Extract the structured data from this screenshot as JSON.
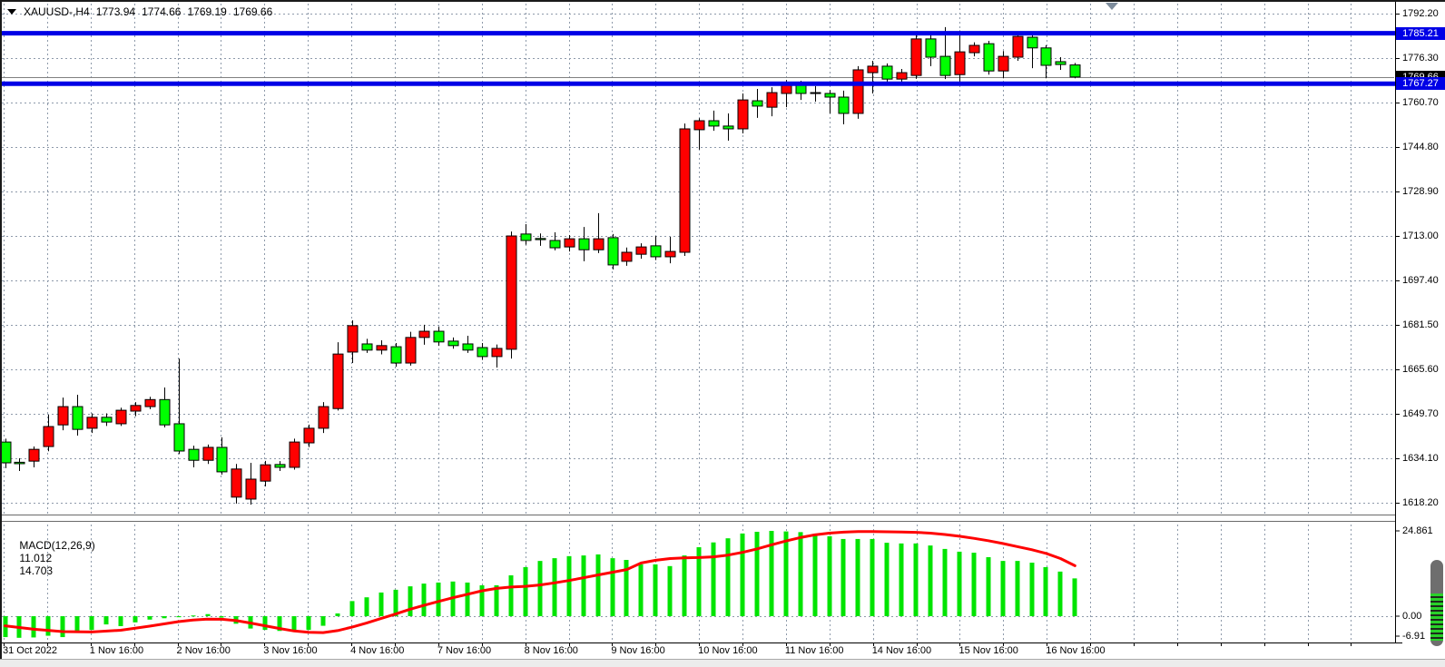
{
  "window": {
    "symbol_period": "XAUUSD-,H4",
    "ohlc": {
      "open": "1773.94",
      "high": "1774.66",
      "low": "1769.19",
      "close": "1769.66"
    }
  },
  "indicator_panel": {
    "label": "MACD(12,26,9)",
    "main_value": "11.012",
    "signal_value": "14.703",
    "axis": [
      "24.861",
      "0.00",
      "-6.91"
    ]
  },
  "price_axis": {
    "badges": [
      {
        "name": "upper-level-price",
        "text": "1785.21",
        "price": 1785.21,
        "bg": "#0000e6",
        "fg": "#ffffff"
      },
      {
        "name": "bid-price",
        "text": "1769.66",
        "price": 1769.66,
        "bg": "#000000",
        "fg": "#ffffff"
      },
      {
        "name": "lower-level-price",
        "text": "1767.27",
        "price": 1767.27,
        "bg": "#0000e6",
        "fg": "#ffffff"
      }
    ]
  },
  "icons": {
    "title_dropdown": "triangle-down",
    "chart_scroll_marker": "triangle-down",
    "right_edge_indicator": "striped-level-meter"
  },
  "colors": {
    "bull": "#ff0000",
    "bear": "#00ff00",
    "hline": "#0000e6",
    "bid_line": "#808080",
    "grid": "#8e9aaa",
    "macd_hist": "#00e400",
    "macd_signal": "#ff0000"
  },
  "chart_data": {
    "type": "candlestick",
    "symbol": "XAUUSD-",
    "timeframe": "H4",
    "title": "XAUUSD-,H4 1773.94 1774.66 1769.19 1769.66",
    "legend": "bull candles drawn red, bear candles drawn lime-green (broker color scheme)",
    "current_bar": {
      "open": 1773.94,
      "high": 1774.66,
      "low": 1769.19,
      "close": 1769.66
    },
    "bull_color": "#ff0000",
    "bear_color": "#00ff00",
    "grid": true,
    "price_ticks": [
      1792.2,
      1776.3,
      1760.7,
      1744.8,
      1728.9,
      1713.0,
      1697.4,
      1681.5,
      1665.6,
      1649.7,
      1634.1,
      1618.2
    ],
    "ylim_main": [
      1612.0,
      1794.0
    ],
    "horizontal_lines": [
      1785.21,
      1767.27
    ],
    "bid_price": 1769.66,
    "time_labels": [
      "31 Oct 2022",
      "1 Nov 16:00",
      "2 Nov 16:00",
      "3 Nov 16:00",
      "4 Nov 16:00",
      "7 Nov 16:00",
      "8 Nov 16:00",
      "9 Nov 16:00",
      "10 Nov 16:00",
      "11 Nov 16:00",
      "14 Nov 16:00",
      "15 Nov 16:00",
      "16 Nov 16:00"
    ],
    "bars_per_day": 6,
    "candles_format": [
      "direction r=bull g=bear",
      "high",
      "low",
      "body_top",
      "body_bottom"
    ],
    "candles": [
      [
        "g",
        1641.0,
        1630.5,
        1639.8,
        1632.4
      ],
      [
        "g",
        1634.0,
        1629.5,
        1632.6,
        1632.1
      ],
      [
        "r",
        1638.2,
        1630.8,
        1637.2,
        1633.0
      ],
      [
        "r",
        1649.5,
        1636.5,
        1645.3,
        1638.2
      ],
      [
        "r",
        1655.6,
        1644.0,
        1652.4,
        1645.9
      ],
      [
        "g",
        1656.6,
        1642.1,
        1652.4,
        1644.3
      ],
      [
        "r",
        1650.0,
        1643.0,
        1648.6,
        1644.7
      ],
      [
        "g",
        1650.0,
        1645.5,
        1648.6,
        1646.9
      ],
      [
        "r",
        1652.0,
        1645.5,
        1651.1,
        1646.3
      ],
      [
        "r",
        1654.0,
        1649.0,
        1652.8,
        1650.8
      ],
      [
        "r",
        1655.9,
        1651.5,
        1654.9,
        1652.4
      ],
      [
        "g",
        1659.2,
        1645.0,
        1654.9,
        1645.9
      ],
      [
        "g",
        1669.5,
        1635.5,
        1646.3,
        1636.6
      ],
      [
        "g",
        1638.5,
        1630.8,
        1637.2,
        1633.3
      ],
      [
        "r",
        1638.9,
        1632.0,
        1637.9,
        1633.3
      ],
      [
        "g",
        1641.5,
        1628.2,
        1637.9,
        1629.2
      ],
      [
        "r",
        1632.0,
        1617.9,
        1630.2,
        1620.2
      ],
      [
        "r",
        1632.4,
        1617.5,
        1626.6,
        1619.5
      ],
      [
        "r",
        1633.1,
        1624.0,
        1631.7,
        1625.9
      ],
      [
        "g",
        1633.0,
        1629.5,
        1631.8,
        1630.8
      ],
      [
        "r",
        1641.0,
        1630.0,
        1639.8,
        1630.8
      ],
      [
        "r",
        1646.0,
        1638.0,
        1644.7,
        1639.5
      ],
      [
        "r",
        1654.0,
        1643.0,
        1652.4,
        1644.7
      ],
      [
        "r",
        1675.3,
        1651.0,
        1671.1,
        1651.7
      ],
      [
        "r",
        1683.1,
        1667.9,
        1681.2,
        1671.8
      ],
      [
        "g",
        1676.5,
        1671.5,
        1674.7,
        1672.5
      ],
      [
        "r",
        1676.0,
        1671.0,
        1674.1,
        1672.5
      ],
      [
        "g",
        1675.0,
        1666.6,
        1673.7,
        1667.9
      ],
      [
        "r",
        1679.0,
        1667.0,
        1677.0,
        1667.9
      ],
      [
        "r",
        1681.5,
        1674.4,
        1679.2,
        1677.0
      ],
      [
        "g",
        1680.8,
        1674.0,
        1679.2,
        1675.4
      ],
      [
        "g",
        1677.0,
        1673.0,
        1675.7,
        1674.1
      ],
      [
        "g",
        1677.6,
        1671.5,
        1674.7,
        1672.5
      ],
      [
        "g",
        1675.0,
        1669.0,
        1673.4,
        1670.2
      ],
      [
        "r",
        1674.5,
        1666.3,
        1673.1,
        1670.2
      ],
      [
        "r",
        1714.7,
        1669.5,
        1713.1,
        1672.8
      ],
      [
        "g",
        1717.3,
        1710.0,
        1713.8,
        1711.5
      ],
      [
        "g",
        1714.0,
        1709.6,
        1712.2,
        1711.8
      ],
      [
        "g",
        1714.4,
        1708.0,
        1711.5,
        1708.9
      ],
      [
        "r",
        1713.4,
        1707.6,
        1712.1,
        1709.2
      ],
      [
        "g",
        1716.3,
        1704.1,
        1712.1,
        1708.2
      ],
      [
        "r",
        1721.2,
        1707.0,
        1712.1,
        1708.2
      ],
      [
        "g",
        1713.8,
        1701.2,
        1712.5,
        1702.8
      ],
      [
        "r",
        1709.0,
        1702.5,
        1707.3,
        1704.1
      ],
      [
        "r",
        1710.5,
        1705.0,
        1709.2,
        1706.6
      ],
      [
        "g",
        1713.1,
        1704.5,
        1709.6,
        1705.7
      ],
      [
        "r",
        1712.8,
        1703.4,
        1707.6,
        1705.7
      ],
      [
        "r",
        1753.1,
        1706.0,
        1751.2,
        1707.3
      ],
      [
        "r",
        1755.0,
        1743.8,
        1754.1,
        1750.9
      ],
      [
        "g",
        1757.7,
        1750.5,
        1754.1,
        1752.2
      ],
      [
        "g",
        1756.7,
        1747.0,
        1752.2,
        1751.2
      ],
      [
        "r",
        1763.8,
        1749.6,
        1761.5,
        1751.2
      ],
      [
        "g",
        1765.4,
        1755.1,
        1761.2,
        1759.3
      ],
      [
        "r",
        1766.0,
        1755.7,
        1764.1,
        1758.9
      ],
      [
        "r",
        1768.6,
        1758.9,
        1767.0,
        1763.8
      ],
      [
        "g",
        1768.3,
        1761.5,
        1767.0,
        1763.8
      ],
      [
        "g",
        1766.4,
        1760.9,
        1764.1,
        1763.8
      ],
      [
        "g",
        1765.0,
        1756.7,
        1763.8,
        1762.5
      ],
      [
        "g",
        1764.8,
        1752.8,
        1762.5,
        1756.7
      ],
      [
        "r",
        1773.5,
        1754.8,
        1772.2,
        1756.7
      ],
      [
        "r",
        1775.4,
        1763.8,
        1773.5,
        1771.2
      ],
      [
        "g",
        1774.5,
        1767.5,
        1773.5,
        1768.9
      ],
      [
        "r",
        1772.5,
        1767.8,
        1771.2,
        1768.9
      ],
      [
        "r",
        1784.8,
        1769.0,
        1783.2,
        1770.2
      ],
      [
        "g",
        1784.5,
        1773.5,
        1783.2,
        1776.7
      ],
      [
        "g",
        1787.4,
        1768.9,
        1777.0,
        1770.2
      ],
      [
        "r",
        1786.2,
        1768.0,
        1778.6,
        1770.5
      ],
      [
        "r",
        1782.0,
        1777.0,
        1780.9,
        1778.3
      ],
      [
        "g",
        1782.5,
        1770.5,
        1781.5,
        1771.8
      ],
      [
        "r",
        1778.9,
        1769.2,
        1777.0,
        1771.8
      ],
      [
        "r",
        1785.1,
        1775.4,
        1784.1,
        1776.7
      ],
      [
        "g",
        1784.8,
        1772.8,
        1783.8,
        1780.0
      ],
      [
        "g",
        1781.0,
        1769.2,
        1780.0,
        1773.8
      ],
      [
        "g",
        1776.7,
        1772.2,
        1775.1,
        1774.1
      ],
      [
        "g",
        1774.66,
        1769.19,
        1773.94,
        1769.66
      ]
    ],
    "macd": {
      "params": [
        12,
        26,
        9
      ],
      "ylim": [
        -6.91,
        24.861
      ],
      "last_main": 11.012,
      "last_signal": 14.703,
      "histogram": [
        -6.1,
        -6.3,
        -6.2,
        -5.7,
        -6.1,
        -4.8,
        -4.0,
        -2.4,
        -2.9,
        -1.8,
        -1.0,
        -0.6,
        -0.3,
        0.2,
        0.6,
        -0.4,
        -2.2,
        -3.6,
        -4.0,
        -4.3,
        -4.5,
        -4.0,
        -2.8,
        0.8,
        4.4,
        5.5,
        6.9,
        7.7,
        8.7,
        9.5,
        9.8,
        10.1,
        9.8,
        9.0,
        9.0,
        11.9,
        14.3,
        16.1,
        16.9,
        17.5,
        17.7,
        18.0,
        16.9,
        16.4,
        15.1,
        15.1,
        14.6,
        17.7,
        20.1,
        21.5,
        22.7,
        24.1,
        24.6,
        24.861,
        24.7,
        24.5,
        24.0,
        23.3,
        22.5,
        22.5,
        22.5,
        21.4,
        21.2,
        21.2,
        20.6,
        19.6,
        18.8,
        18.5,
        17.2,
        16.1,
        16.1,
        15.6,
        14.3,
        13.0,
        11.012
      ],
      "signal": [
        [
          0,
          -2.8
        ],
        [
          2,
          -3.8
        ],
        [
          4,
          -4.5
        ],
        [
          6,
          -4.6
        ],
        [
          8,
          -4.1
        ],
        [
          10,
          -2.9
        ],
        [
          12,
          -1.6
        ],
        [
          13,
          -1.1
        ],
        [
          14,
          -0.85
        ],
        [
          15,
          -0.9
        ],
        [
          16,
          -1.3
        ],
        [
          17,
          -2.0
        ],
        [
          18,
          -2.8
        ],
        [
          19,
          -3.6
        ],
        [
          20,
          -4.3
        ],
        [
          21,
          -4.7
        ],
        [
          22,
          -4.8
        ],
        [
          23,
          -4.2
        ],
        [
          24,
          -3.2
        ],
        [
          25,
          -2.0
        ],
        [
          26,
          -0.7
        ],
        [
          27,
          0.6
        ],
        [
          28,
          2.0
        ],
        [
          29,
          3.2
        ],
        [
          30,
          4.3
        ],
        [
          31,
          5.4
        ],
        [
          32,
          6.4
        ],
        [
          33,
          7.4
        ],
        [
          34,
          8.1
        ],
        [
          35,
          8.5
        ],
        [
          36,
          8.7
        ],
        [
          37,
          9.1
        ],
        [
          38,
          9.7
        ],
        [
          39,
          10.4
        ],
        [
          40,
          11.2
        ],
        [
          41,
          12.0
        ],
        [
          42,
          12.8
        ],
        [
          43,
          13.6
        ],
        [
          44,
          15.5
        ],
        [
          45,
          16.3
        ],
        [
          46,
          16.8
        ],
        [
          47,
          17.0
        ],
        [
          48,
          17.1
        ],
        [
          49,
          17.3
        ],
        [
          50,
          17.8
        ],
        [
          51,
          18.6
        ],
        [
          52,
          19.6
        ],
        [
          53,
          20.8
        ],
        [
          54,
          21.9
        ],
        [
          55,
          22.9
        ],
        [
          56,
          23.7
        ],
        [
          57,
          24.2
        ],
        [
          58,
          24.5
        ],
        [
          59,
          24.65
        ],
        [
          60,
          24.65
        ],
        [
          61,
          24.6
        ],
        [
          62,
          24.55
        ],
        [
          63,
          24.45
        ],
        [
          64,
          24.2
        ],
        [
          65,
          23.8
        ],
        [
          66,
          23.3
        ],
        [
          67,
          22.7
        ],
        [
          68,
          22.0
        ],
        [
          69,
          21.2
        ],
        [
          70,
          20.3
        ],
        [
          71,
          19.4
        ],
        [
          72,
          18.3
        ],
        [
          73,
          16.8
        ],
        [
          74,
          14.703
        ]
      ]
    }
  }
}
